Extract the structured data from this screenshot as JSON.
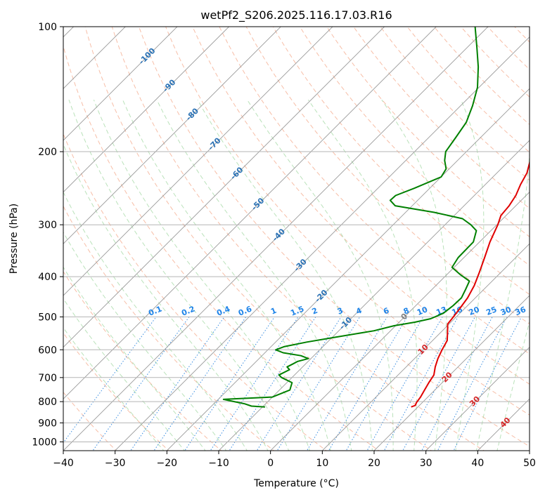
{
  "chart_data": {
    "type": "line",
    "subtype": "skew-t log-p diagram",
    "title": "wetPf2_S206.2025.116.17.03.R16",
    "xlabel": "Temperature (°C)",
    "ylabel": "Pressure (hPa)",
    "xlim": [
      -40,
      50
    ],
    "ylim": [
      1050,
      100
    ],
    "y_scale": "log",
    "grid": true,
    "x_ticks": [
      -40,
      -30,
      -20,
      -10,
      0,
      10,
      20,
      30,
      40,
      50
    ],
    "x_tick_labels": [
      "−40",
      "−30",
      "−20",
      "−10",
      "0",
      "10",
      "20",
      "30",
      "40",
      "50"
    ],
    "y_ticks": [
      1000,
      900,
      800,
      700,
      600,
      500,
      400,
      300,
      200,
      100
    ],
    "y_tick_labels": [
      "1000",
      "900",
      "800",
      "700",
      "600",
      "500",
      "400",
      "300",
      "200",
      "100"
    ],
    "isotherm_labels": [
      {
        "t": -100,
        "text": "-100"
      },
      {
        "t": -90,
        "text": "-90"
      },
      {
        "t": -80,
        "text": "-80"
      },
      {
        "t": -70,
        "text": "-70"
      },
      {
        "t": -60,
        "text": "-60"
      },
      {
        "t": -50,
        "text": "-50"
      },
      {
        "t": -40,
        "text": "-40"
      },
      {
        "t": -30,
        "text": "-30"
      },
      {
        "t": -20,
        "text": "-20"
      },
      {
        "t": -10,
        "text": "-10"
      }
    ],
    "isotherm_labels_lower": [
      {
        "t": 0,
        "p": 500,
        "text": "0"
      },
      {
        "t": 10,
        "p": 600,
        "text": "10"
      },
      {
        "t": 20,
        "p": 700,
        "text": "20"
      },
      {
        "t": 30,
        "p": 800,
        "text": "30"
      },
      {
        "t": 40,
        "p": 900,
        "text": "40"
      }
    ],
    "mixing_ratio_labels": [
      "0.1",
      "0.2",
      "0.4",
      "0.6",
      "1",
      "1.5",
      "2",
      "3",
      "4",
      "6",
      "8",
      "10",
      "13",
      "16",
      "20",
      "25",
      "30",
      "36"
    ],
    "series": [
      {
        "name": "Temperature",
        "color": "#e00000",
        "points": [
          [
            824,
            18.7
          ],
          [
            817,
            19.2
          ],
          [
            805,
            18.9
          ],
          [
            780,
            18.6
          ],
          [
            750,
            18.0
          ],
          [
            720,
            17.4
          ],
          [
            690,
            16.9
          ],
          [
            660,
            15.6
          ],
          [
            630,
            14.5
          ],
          [
            600,
            13.6
          ],
          [
            570,
            12.8
          ],
          [
            545,
            11.3
          ],
          [
            520,
            9.7
          ],
          [
            505,
            9.5
          ],
          [
            480,
            9.1
          ],
          [
            450,
            8.5
          ],
          [
            420,
            7.4
          ],
          [
            390,
            5.8
          ],
          [
            360,
            4.0
          ],
          [
            330,
            2.0
          ],
          [
            300,
            0.2
          ],
          [
            285,
            -1.0
          ],
          [
            270,
            -1.3
          ],
          [
            255,
            -2.0
          ],
          [
            240,
            -3.2
          ],
          [
            225,
            -4.2
          ],
          [
            210,
            -6.0
          ],
          [
            200,
            -7.4
          ],
          [
            185,
            -9.3
          ],
          [
            170,
            -11.3
          ],
          [
            155,
            -13.6
          ],
          [
            140,
            -16.5
          ],
          [
            125,
            -19.8
          ],
          [
            112,
            -23.5
          ],
          [
            100,
            -27.3
          ]
        ]
      },
      {
        "name": "Dewpoint",
        "color": "#008000",
        "points": [
          [
            824,
            -9.5
          ],
          [
            820,
            -12.3
          ],
          [
            810,
            -14.0
          ],
          [
            800,
            -16.5
          ],
          [
            790,
            -19.0
          ],
          [
            780,
            -10.0
          ],
          [
            750,
            -8.0
          ],
          [
            720,
            -9.0
          ],
          [
            700,
            -12.0
          ],
          [
            690,
            -13.0
          ],
          [
            680,
            -12.5
          ],
          [
            670,
            -12.0
          ],
          [
            660,
            -13.0
          ],
          [
            650,
            -12.5
          ],
          [
            640,
            -12.0
          ],
          [
            630,
            -10.5
          ],
          [
            620,
            -12.5
          ],
          [
            610,
            -16.5
          ],
          [
            600,
            -18.5
          ],
          [
            590,
            -17.5
          ],
          [
            575,
            -14.0
          ],
          [
            560,
            -9.5
          ],
          [
            540,
            -3.2
          ],
          [
            525,
            -0.3
          ],
          [
            515,
            3.0
          ],
          [
            505,
            5.4
          ],
          [
            490,
            6.8
          ],
          [
            470,
            7.2
          ],
          [
            450,
            7.3
          ],
          [
            430,
            6.5
          ],
          [
            410,
            5.6
          ],
          [
            395,
            2.5
          ],
          [
            380,
            -0.4
          ],
          [
            360,
            -1.1
          ],
          [
            330,
            -1.2
          ],
          [
            310,
            -2.8
          ],
          [
            300,
            -5.0
          ],
          [
            290,
            -7.8
          ],
          [
            280,
            -14.5
          ],
          [
            270,
            -23.3
          ],
          [
            262,
            -25.3
          ],
          [
            255,
            -25.2
          ],
          [
            245,
            -23.0
          ],
          [
            230,
            -20.0
          ],
          [
            220,
            -20.6
          ],
          [
            210,
            -22.5
          ],
          [
            200,
            -24.0
          ],
          [
            185,
            -24.8
          ],
          [
            170,
            -25.7
          ],
          [
            155,
            -27.7
          ],
          [
            140,
            -30.3
          ],
          [
            125,
            -34.1
          ],
          [
            112,
            -38.2
          ],
          [
            100,
            -42.5
          ]
        ]
      }
    ]
  }
}
